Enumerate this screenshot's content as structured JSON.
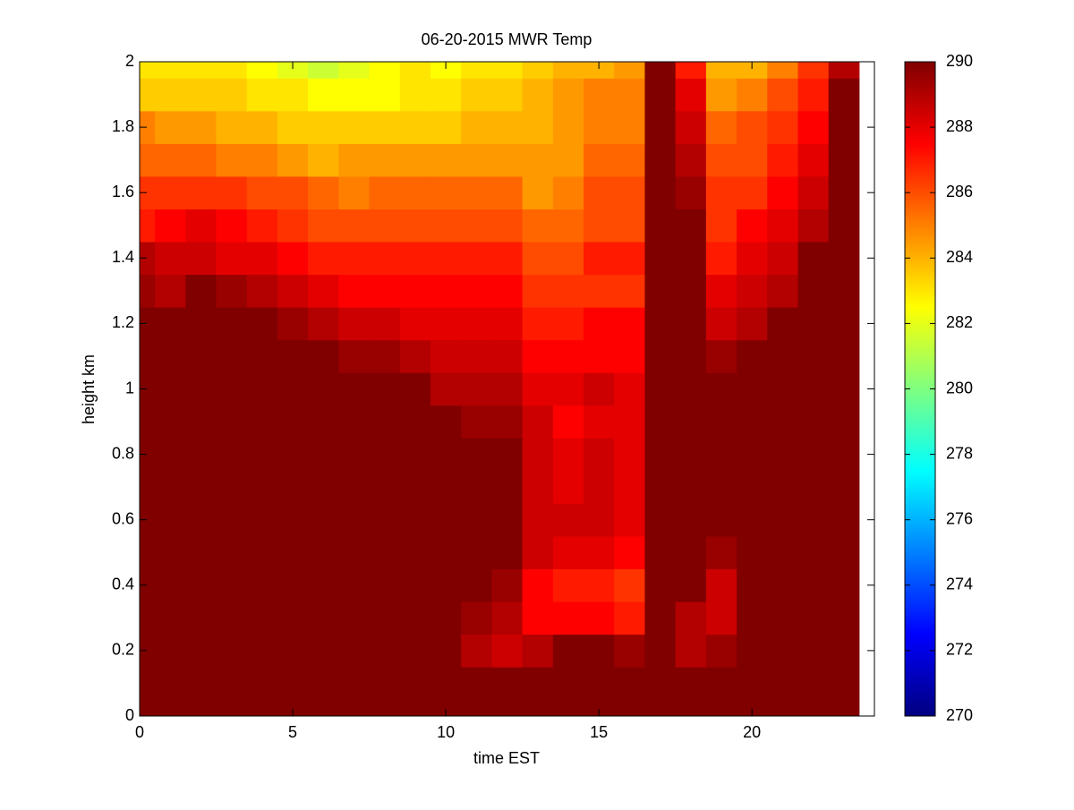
{
  "chart_data": {
    "type": "heatmap",
    "title": "06-20-2015 MWR Temp",
    "x_label": "time EST",
    "y_label": "height km",
    "colormap": "jet",
    "clim": [
      270,
      290
    ],
    "x": [
      0,
      1,
      2,
      3,
      4,
      5,
      6,
      7,
      8,
      9,
      10,
      11,
      12,
      13,
      14,
      15,
      16,
      17,
      18,
      19,
      20,
      21,
      22,
      23
    ],
    "y": [
      0,
      0.1,
      0.2,
      0.3,
      0.4,
      0.5,
      0.6,
      0.7,
      0.8,
      0.9,
      1,
      1.1,
      1.2,
      1.3,
      1.4,
      1.5,
      1.6,
      1.7,
      1.8,
      1.9,
      2
    ],
    "z": [
      [
        290,
        290,
        290,
        290,
        290,
        290,
        290,
        290,
        290,
        290,
        290,
        290,
        290,
        290,
        290,
        290,
        290,
        290,
        290,
        290,
        290,
        290,
        290,
        290
      ],
      [
        290,
        290,
        290,
        290,
        290,
        290,
        290,
        290,
        290,
        290,
        290,
        290,
        290,
        290,
        290,
        290,
        290,
        290,
        290,
        290,
        290,
        290,
        290,
        290
      ],
      [
        290,
        290,
        290,
        290,
        290,
        290,
        290,
        290,
        290,
        290,
        290,
        289,
        288.5,
        289,
        290,
        290,
        289.5,
        290,
        289,
        289.5,
        290,
        290,
        290,
        290
      ],
      [
        290,
        290,
        290,
        290,
        290,
        290,
        290,
        290,
        290,
        290,
        290,
        289.5,
        289,
        287.5,
        287.5,
        287.5,
        287,
        290,
        289,
        288.5,
        290,
        290,
        290,
        290
      ],
      [
        290,
        290,
        290,
        290,
        290,
        290,
        290,
        290,
        290,
        290,
        290,
        290,
        289.5,
        287.5,
        287,
        287,
        286.5,
        290,
        290,
        288.5,
        290,
        290,
        290,
        290
      ],
      [
        290,
        290,
        290,
        290,
        290,
        290,
        290,
        290,
        290,
        290,
        290,
        290,
        290,
        288.5,
        288,
        288,
        287.5,
        290,
        290,
        289.5,
        290,
        290,
        290,
        290
      ],
      [
        290,
        290,
        290,
        290,
        290,
        290,
        290,
        290,
        290,
        290,
        290,
        290,
        290,
        288.5,
        288.5,
        288.5,
        288,
        290,
        290,
        290,
        290,
        290,
        290,
        290
      ],
      [
        290,
        290,
        290,
        290,
        290,
        290,
        290,
        290,
        290,
        290,
        290,
        290,
        290,
        288.5,
        288,
        288.5,
        288,
        290,
        290,
        290,
        290,
        290,
        290,
        290
      ],
      [
        290,
        290,
        290,
        290,
        290,
        290,
        290,
        290,
        290,
        290,
        290,
        290,
        290,
        288.5,
        288,
        288.5,
        288,
        290,
        290,
        290,
        290,
        290,
        290,
        290
      ],
      [
        290,
        290,
        290,
        290,
        290,
        290,
        290,
        290,
        290,
        290,
        290,
        289.5,
        289.5,
        288.5,
        287.5,
        288,
        288,
        290,
        290,
        290,
        290,
        290,
        290,
        290
      ],
      [
        290,
        290,
        290,
        290,
        290,
        290,
        290,
        290,
        290,
        290,
        289,
        289,
        289,
        288,
        288,
        288.5,
        288,
        290,
        290,
        290,
        290,
        290,
        290,
        290
      ],
      [
        290,
        290,
        290,
        290,
        290,
        290,
        290,
        289.5,
        289.5,
        289,
        288.5,
        288.5,
        288.5,
        287.5,
        287.5,
        287.5,
        287.5,
        290,
        290,
        289.5,
        290,
        290,
        290,
        290
      ],
      [
        290,
        290,
        290,
        290,
        290,
        289.5,
        289,
        288.5,
        288.5,
        288,
        288,
        288,
        288,
        287,
        287,
        287.5,
        287.5,
        290,
        290,
        288.5,
        289,
        290,
        290,
        290
      ],
      [
        289.5,
        289,
        290,
        289.5,
        289,
        288.5,
        288,
        287.5,
        287.5,
        287.5,
        287.5,
        287.5,
        287.5,
        286.5,
        286.5,
        286.5,
        286.5,
        290,
        290,
        288,
        288.5,
        289,
        290,
        290
      ],
      [
        289,
        288.5,
        288.5,
        288,
        288,
        287.5,
        287,
        287,
        287,
        287,
        287,
        287,
        287,
        286,
        286,
        287,
        287,
        290,
        290,
        287,
        288,
        288.5,
        290,
        290
      ],
      [
        287,
        287.5,
        288,
        287.5,
        287,
        286.5,
        286,
        286,
        286,
        286,
        286,
        286,
        286,
        285.5,
        285.5,
        286,
        286,
        290,
        290,
        286.5,
        287.5,
        288,
        289,
        290
      ],
      [
        286.5,
        286.5,
        286.5,
        286.5,
        286,
        286,
        285.5,
        285,
        285.5,
        285.5,
        285.5,
        285.5,
        285.5,
        284.5,
        285,
        286,
        286,
        290,
        289.5,
        286.5,
        286.5,
        287.5,
        288.5,
        290
      ],
      [
        285.5,
        285.5,
        285.5,
        285,
        285,
        284.5,
        284,
        284.5,
        284.5,
        284.5,
        284.5,
        284.5,
        284.5,
        284.5,
        284.5,
        285.5,
        285.5,
        290,
        289,
        286,
        286,
        287,
        288,
        290
      ],
      [
        285,
        284.5,
        284.5,
        284,
        284,
        283.5,
        283.5,
        283.5,
        283.5,
        283.5,
        283.5,
        284,
        284,
        284,
        284.5,
        285,
        285,
        290,
        288.5,
        285.5,
        286,
        286.5,
        287.5,
        290
      ],
      [
        283.5,
        283.5,
        283.5,
        283.5,
        283,
        283,
        282.5,
        282.5,
        282.5,
        283,
        283,
        283.5,
        283.5,
        284,
        284.5,
        285,
        285,
        290,
        288,
        284.5,
        285,
        286,
        287,
        290
      ],
      [
        283,
        283,
        283,
        283,
        282.5,
        282,
        281.5,
        282,
        282.5,
        283,
        282.5,
        283,
        283,
        283.5,
        284,
        284,
        284.5,
        290,
        287,
        284,
        284,
        285,
        286.5,
        289
      ]
    ],
    "xlim": [
      0,
      24
    ],
    "ylim": [
      0,
      2
    ],
    "xticks": [
      0,
      5,
      10,
      15,
      20
    ],
    "yticks": [
      0,
      0.2,
      0.4,
      0.6,
      0.8,
      1,
      1.2,
      1.4,
      1.6,
      1.8,
      2
    ],
    "cticks": [
      270,
      272,
      274,
      276,
      278,
      280,
      282,
      284,
      286,
      288,
      290
    ]
  }
}
